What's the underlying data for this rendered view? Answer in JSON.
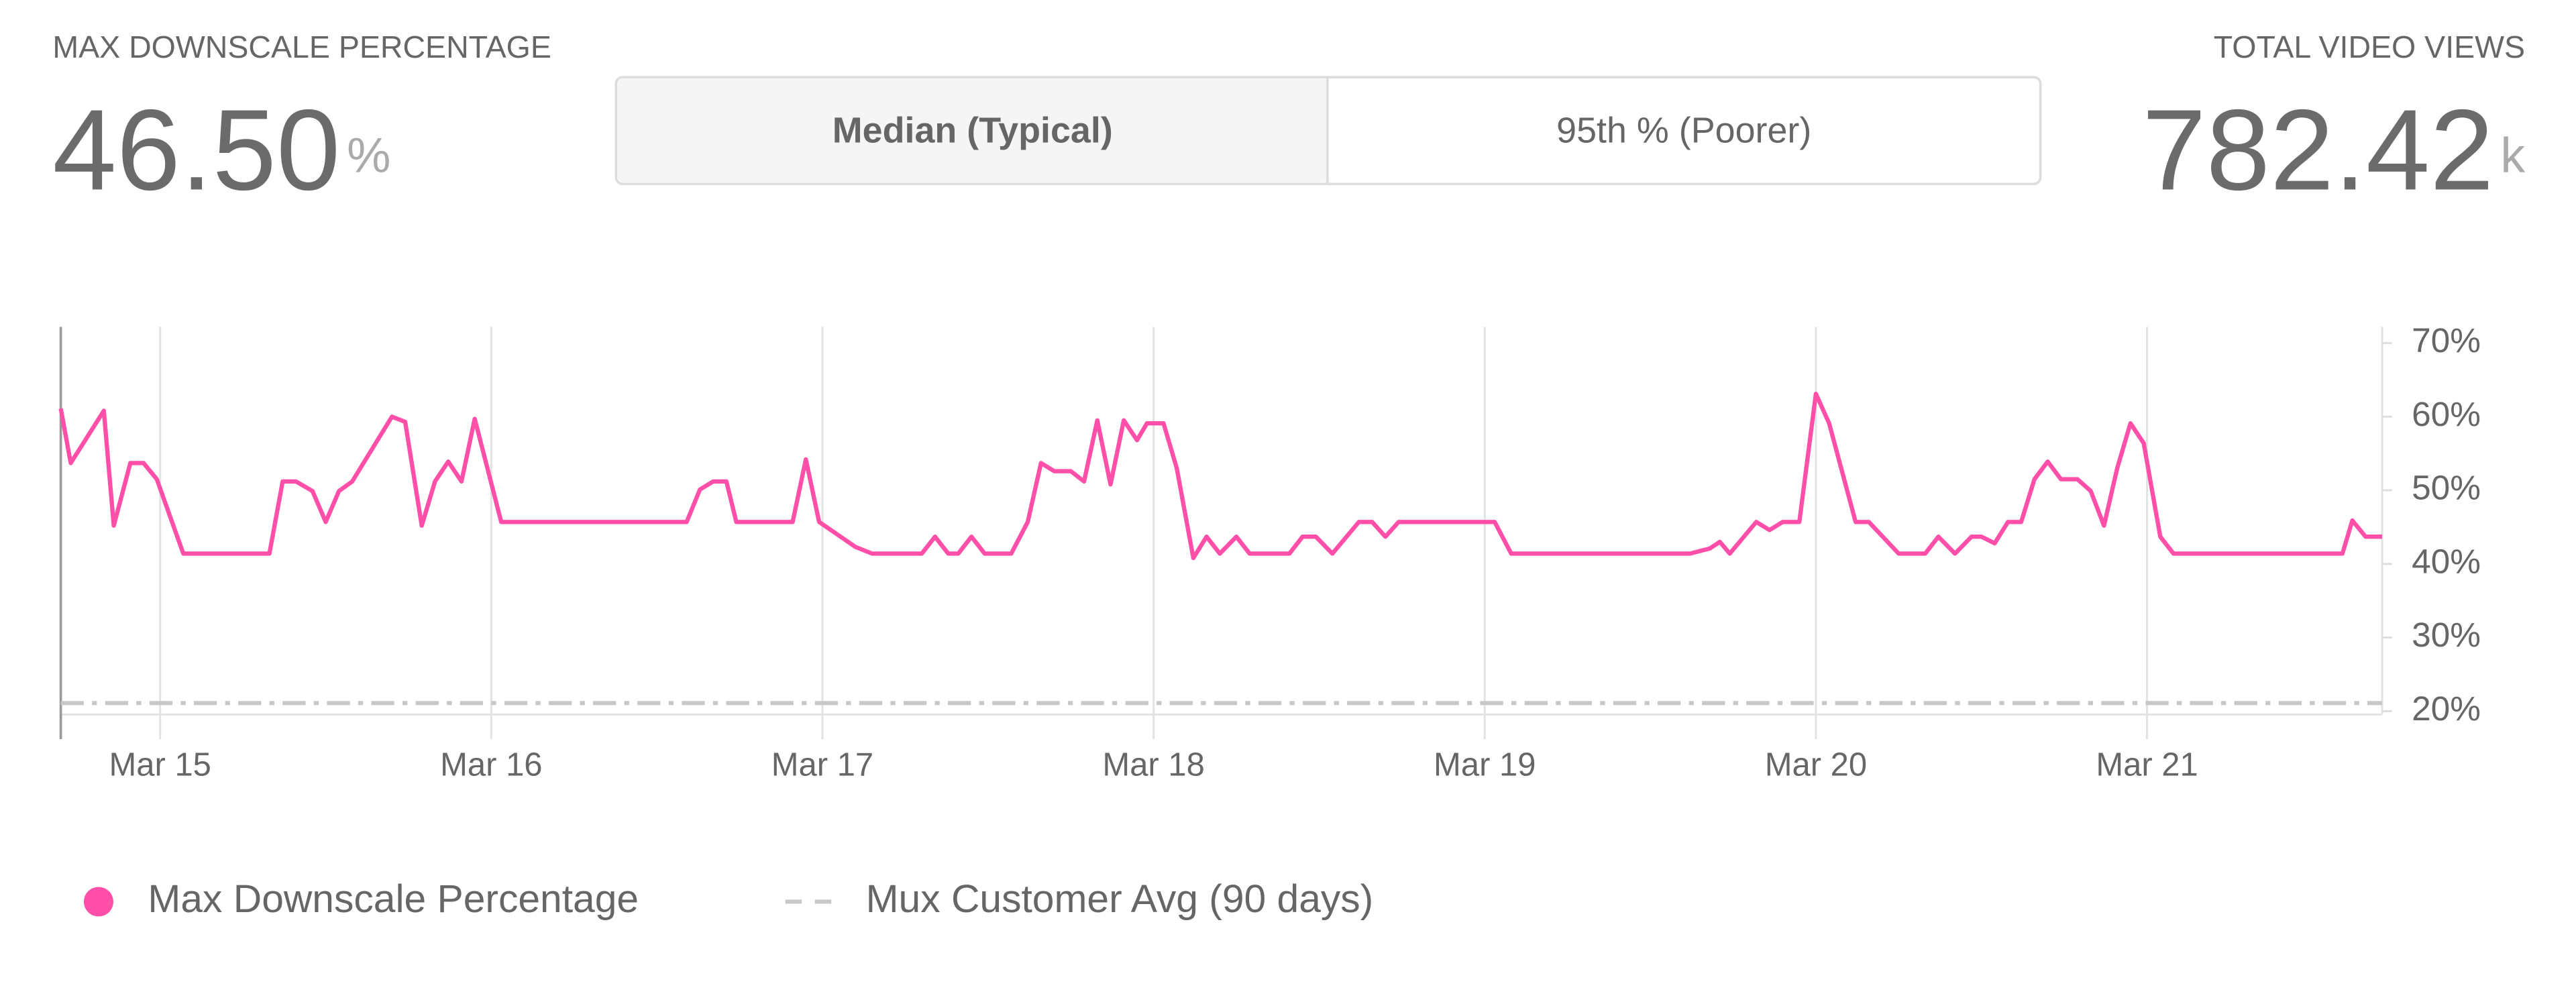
{
  "metrics": [
    {
      "label": "MAX DOWNSCALE PERCENTAGE",
      "value": "46.50",
      "unit": "%"
    },
    {
      "label": "TOTAL VIDEO VIEWS",
      "value": "782.42",
      "unit": "k"
    }
  ],
  "toggle": [
    "Median (Typical)",
    "95th % (Poorer)"
  ],
  "chart_data": {
    "type": "line",
    "xlim": [
      14.7,
      21.71
    ],
    "xticks": [
      {
        "value": 15,
        "label": "Mar 15"
      },
      {
        "value": 16,
        "label": "Mar 16"
      },
      {
        "value": 17,
        "label": "Mar 17"
      },
      {
        "value": 18,
        "label": "Mar 18"
      },
      {
        "value": 19,
        "label": "Mar 19"
      },
      {
        "value": 20,
        "label": "Mar 20"
      },
      {
        "value": 21,
        "label": "Mar 21"
      }
    ],
    "ylim": [
      20,
      72.2
    ],
    "yticks": [
      {
        "value": 20,
        "label": "20%"
      },
      {
        "value": 30,
        "label": "30%"
      },
      {
        "value": 40,
        "label": "40%"
      },
      {
        "value": 50,
        "label": "50%"
      },
      {
        "value": 60,
        "label": "60%"
      },
      {
        "value": 70,
        "label": "70%"
      }
    ],
    "grid": true,
    "series": [
      {
        "name": "Max Downscale Percentage",
        "color": "#ff4fa8",
        "style": "solid",
        "x": [
          14.7,
          14.73,
          14.83,
          14.86,
          14.91,
          14.95,
          14.99,
          15.07,
          15.33,
          15.37,
          15.41,
          15.46,
          15.5,
          15.54,
          15.58,
          15.7,
          15.74,
          15.79,
          15.83,
          15.87,
          15.91,
          15.95,
          16.03,
          16.59,
          16.63,
          16.67,
          16.71,
          16.74,
          16.91,
          16.95,
          16.99,
          17.1,
          17.15,
          17.3,
          17.34,
          17.38,
          17.41,
          17.45,
          17.49,
          17.57,
          17.62,
          17.66,
          17.7,
          17.75,
          17.79,
          17.83,
          17.87,
          17.91,
          17.95,
          17.98,
          18.03,
          18.07,
          18.12,
          18.16,
          18.2,
          18.25,
          18.29,
          18.41,
          18.45,
          18.49,
          18.54,
          18.62,
          18.66,
          18.7,
          18.74,
          19.03,
          19.08,
          19.62,
          19.68,
          19.71,
          19.74,
          19.82,
          19.86,
          19.9,
          19.95,
          20.0,
          20.04,
          20.12,
          20.16,
          20.25,
          20.33,
          20.37,
          20.42,
          20.47,
          20.5,
          20.54,
          20.58,
          20.62,
          20.66,
          20.7,
          20.74,
          20.79,
          20.83,
          20.87,
          20.91,
          20.95,
          20.99,
          21.04,
          21.08,
          21.59,
          21.62,
          21.66,
          21.71
        ],
        "values": [
          61.1,
          53.7,
          60.8,
          45.2,
          53.7,
          53.7,
          51.5,
          41.4,
          41.4,
          51.2,
          51.2,
          49.9,
          45.7,
          49.9,
          51.2,
          60.0,
          59.3,
          45.2,
          51.2,
          53.9,
          51.2,
          59.7,
          45.7,
          45.7,
          50.1,
          51.2,
          51.2,
          45.7,
          45.7,
          54.2,
          45.7,
          42.3,
          41.4,
          41.4,
          43.7,
          41.4,
          41.4,
          43.7,
          41.4,
          41.4,
          45.7,
          53.7,
          52.6,
          52.6,
          51.2,
          59.5,
          50.8,
          59.5,
          56.8,
          59.1,
          59.1,
          53.0,
          40.8,
          43.7,
          41.4,
          43.7,
          41.4,
          41.4,
          43.7,
          43.7,
          41.4,
          45.7,
          45.7,
          43.7,
          45.7,
          45.7,
          41.4,
          41.4,
          42.1,
          43.0,
          41.4,
          45.7,
          44.6,
          45.7,
          45.7,
          63.1,
          59.1,
          45.7,
          45.7,
          41.4,
          41.4,
          43.7,
          41.4,
          43.7,
          43.7,
          42.8,
          45.7,
          45.7,
          51.5,
          53.9,
          51.5,
          51.5,
          49.9,
          45.2,
          53.0,
          59.1,
          56.4,
          43.7,
          41.4,
          41.4,
          45.9,
          43.7,
          43.7
        ]
      },
      {
        "name": "Mux Customer Avg (90 days)",
        "color": "#c8c8c8",
        "style": "dashed",
        "x": [
          14.7,
          21.71
        ],
        "values": [
          21.1,
          21.1
        ]
      }
    ]
  }
}
